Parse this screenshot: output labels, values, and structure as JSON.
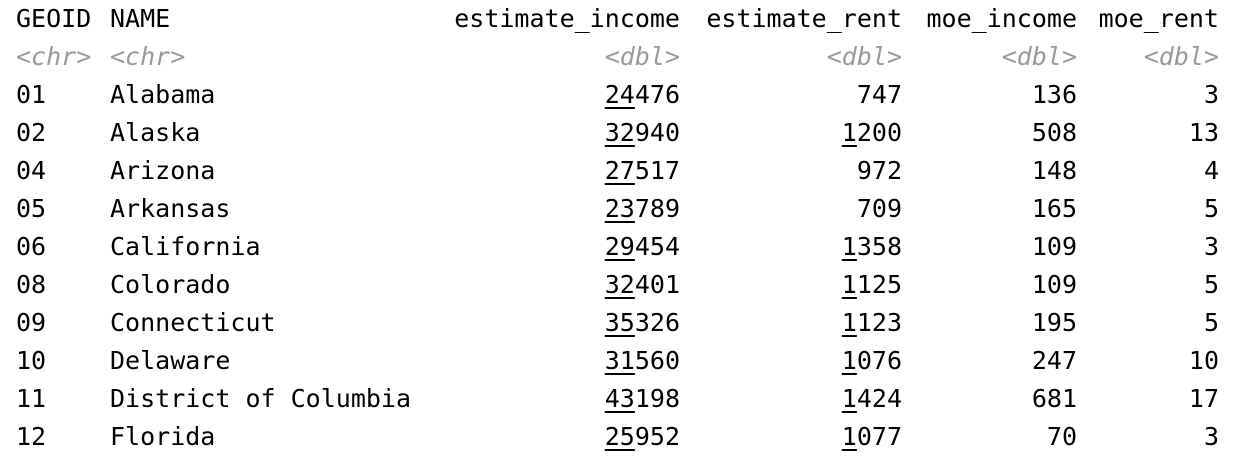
{
  "columns": [
    {
      "header": "GEOID",
      "type": "<chr>"
    },
    {
      "header": "NAME",
      "type": "<chr>"
    },
    {
      "header": "estimate_income",
      "type": "<dbl>"
    },
    {
      "header": "estimate_rent",
      "type": "<dbl>"
    },
    {
      "header": "moe_income",
      "type": "<dbl>"
    },
    {
      "header": "moe_rent",
      "type": "<dbl>"
    }
  ],
  "rows": [
    {
      "geoid": "01",
      "name": "Alabama",
      "estimate_income": 24476,
      "estimate_rent": 747,
      "moe_income": 136,
      "moe_rent": 3
    },
    {
      "geoid": "02",
      "name": "Alaska",
      "estimate_income": 32940,
      "estimate_rent": 1200,
      "moe_income": 508,
      "moe_rent": 13
    },
    {
      "geoid": "04",
      "name": "Arizona",
      "estimate_income": 27517,
      "estimate_rent": 972,
      "moe_income": 148,
      "moe_rent": 4
    },
    {
      "geoid": "05",
      "name": "Arkansas",
      "estimate_income": 23789,
      "estimate_rent": 709,
      "moe_income": 165,
      "moe_rent": 5
    },
    {
      "geoid": "06",
      "name": "California",
      "estimate_income": 29454,
      "estimate_rent": 1358,
      "moe_income": 109,
      "moe_rent": 3
    },
    {
      "geoid": "08",
      "name": "Colorado",
      "estimate_income": 32401,
      "estimate_rent": 1125,
      "moe_income": 109,
      "moe_rent": 5
    },
    {
      "geoid": "09",
      "name": "Connecticut",
      "estimate_income": 35326,
      "estimate_rent": 1123,
      "moe_income": 195,
      "moe_rent": 5
    },
    {
      "geoid": "10",
      "name": "Delaware",
      "estimate_income": 31560,
      "estimate_rent": 1076,
      "moe_income": 247,
      "moe_rent": 10
    },
    {
      "geoid": "11",
      "name": "District of Columbia",
      "estimate_income": 43198,
      "estimate_rent": 1424,
      "moe_income": 681,
      "moe_rent": 17
    },
    {
      "geoid": "12",
      "name": "Florida",
      "estimate_income": 25952,
      "estimate_rent": 1077,
      "moe_income": 70,
      "moe_rent": 3
    }
  ]
}
